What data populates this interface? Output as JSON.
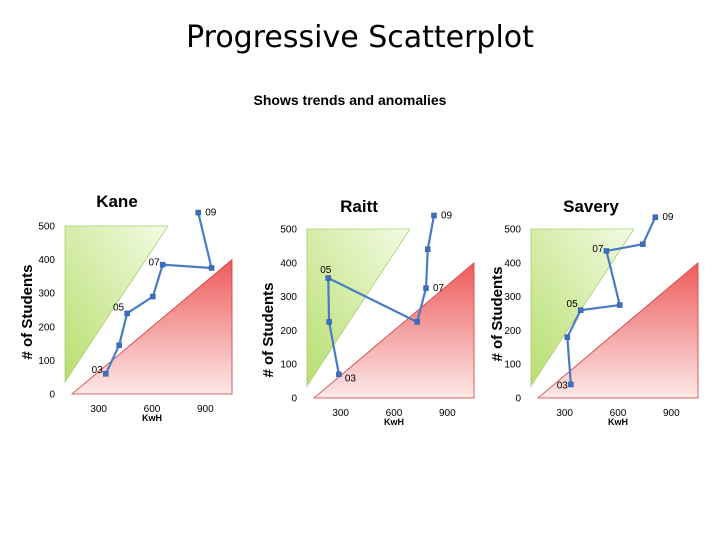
{
  "title": "Progressive Scatterplot",
  "subtitle": "Shows trends and anomalies",
  "chart_data": [
    {
      "type": "scatter",
      "title": "Kane",
      "xlabel": "KwH",
      "ylabel": "# of Students",
      "xticks": [
        300,
        600,
        900
      ],
      "yticks": [
        0,
        100,
        200,
        300,
        400,
        500
      ],
      "xlim": [
        150,
        1050
      ],
      "ylim": [
        0,
        500
      ],
      "grid": false,
      "series": [
        {
          "points": [
            {
              "x": 340,
              "y": 60,
              "label": "03"
            },
            {
              "x": 415,
              "y": 145
            },
            {
              "x": 460,
              "y": 240,
              "label": "05"
            },
            {
              "x": 605,
              "y": 290
            },
            {
              "x": 660,
              "y": 385,
              "label": "07"
            },
            {
              "x": 935,
              "y": 375
            },
            {
              "x": 860,
              "y": 540,
              "label": "09"
            }
          ]
        }
      ],
      "regions": [
        {
          "name": "upper-left-green-triangle",
          "color": "#b8de6f",
          "fill_light": "#f3fbe4"
        },
        {
          "name": "lower-right-red-triangle",
          "color": "#ee5b5b",
          "fill_light": "#fce8e8"
        }
      ],
      "line_color": "#4a7cc4"
    },
    {
      "type": "scatter",
      "title": "Raitt",
      "xlabel": "KwH",
      "ylabel": "# of Students",
      "xticks": [
        300,
        600,
        900
      ],
      "yticks": [
        0,
        100,
        200,
        300,
        400,
        500
      ],
      "xlim": [
        150,
        1050
      ],
      "ylim": [
        0,
        500
      ],
      "grid": false,
      "series": [
        {
          "points": [
            {
              "x": 290,
              "y": 70,
              "label": "03"
            },
            {
              "x": 235,
              "y": 225
            },
            {
              "x": 230,
              "y": 355,
              "label": "05"
            },
            {
              "x": 730,
              "y": 225
            },
            {
              "x": 780,
              "y": 325,
              "label": "07"
            },
            {
              "x": 790,
              "y": 440
            },
            {
              "x": 825,
              "y": 540,
              "label": "09"
            }
          ]
        }
      ],
      "regions": [
        {
          "name": "upper-left-green-triangle",
          "color": "#b8de6f",
          "fill_light": "#f3fbe4"
        },
        {
          "name": "lower-right-red-triangle",
          "color": "#ee5b5b",
          "fill_light": "#fce8e8"
        }
      ],
      "line_color": "#4a7cc4"
    },
    {
      "type": "scatter",
      "title": "Savery",
      "xlabel": "KwH",
      "ylabel": "# of Students",
      "xticks": [
        300,
        600,
        900
      ],
      "yticks": [
        0,
        100,
        200,
        300,
        400,
        500
      ],
      "xlim": [
        150,
        1050
      ],
      "ylim": [
        0,
        500
      ],
      "grid": false,
      "series": [
        {
          "points": [
            {
              "x": 335,
              "y": 40,
              "label": "03"
            },
            {
              "x": 315,
              "y": 180
            },
            {
              "x": 390,
              "y": 260,
              "label": "05"
            },
            {
              "x": 610,
              "y": 275
            },
            {
              "x": 535,
              "y": 435,
              "label": "07"
            },
            {
              "x": 740,
              "y": 455
            },
            {
              "x": 810,
              "y": 535,
              "label": "09"
            }
          ]
        }
      ],
      "regions": [
        {
          "name": "upper-left-green-triangle",
          "color": "#b8de6f",
          "fill_light": "#f3fbe4"
        },
        {
          "name": "lower-right-red-triangle",
          "color": "#ee5b5b",
          "fill_light": "#fce8e8"
        }
      ],
      "line_color": "#4a7cc4"
    }
  ]
}
